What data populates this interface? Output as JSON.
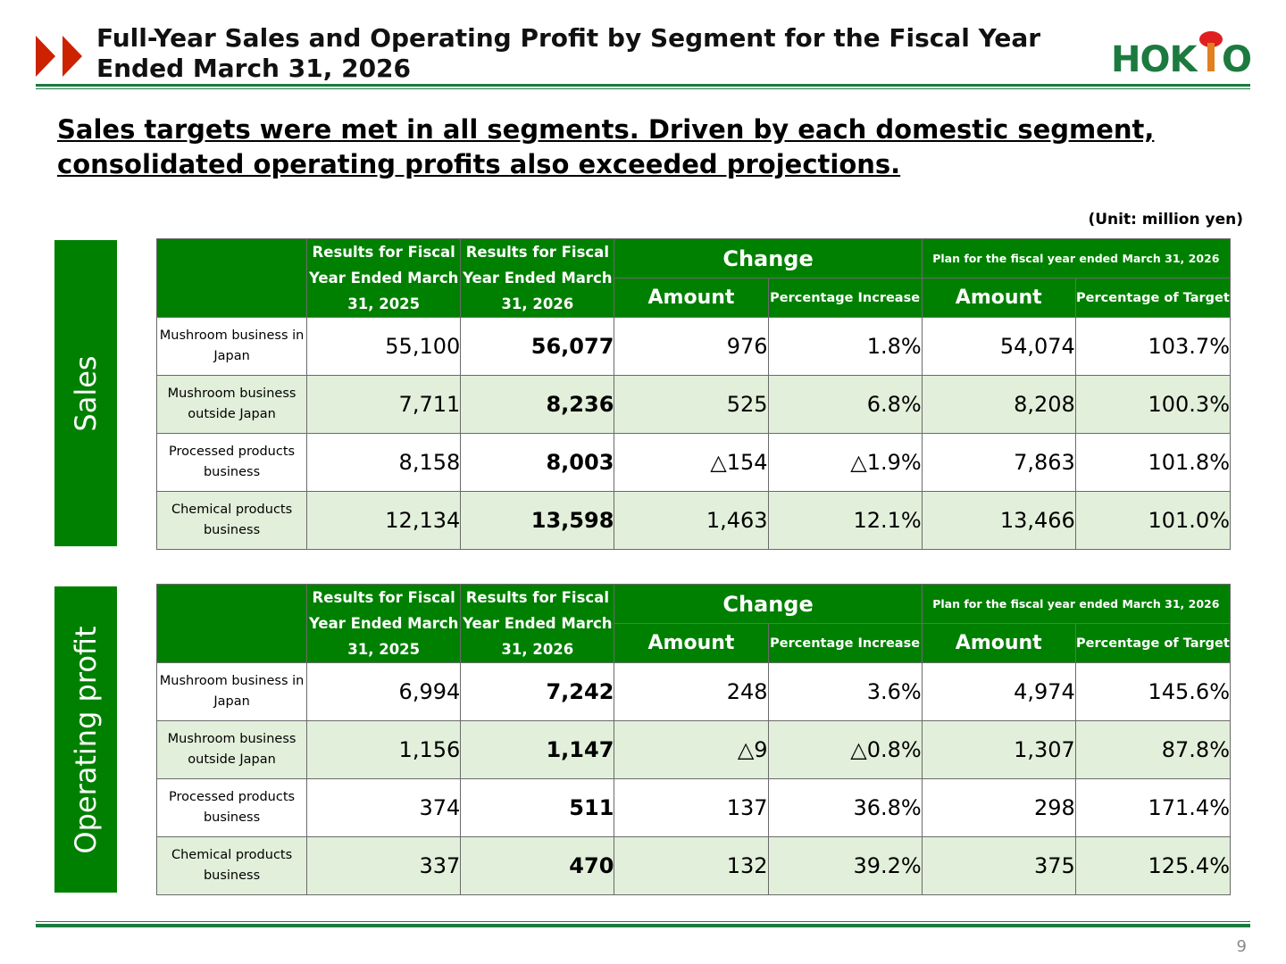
{
  "header": {
    "title": "Full-Year Sales and Operating Profit by Segment for the Fiscal Year Ended March 31, 2026",
    "logo_text": "HOKTO"
  },
  "headline": "Sales targets were met in all segments. Driven by each domestic segment, consolidated operating profits also exceeded projections.",
  "unit": "(Unit: million yen)",
  "columns": {
    "results_prev": "Results for Fiscal Year Ended March 31, 2025",
    "results_curr": "Results for Fiscal Year Ended March 31, 2026",
    "change": "Change",
    "plan": "Plan for the fiscal year ended March 31, 2026",
    "amount": "Amount",
    "pct_increase": "Percentage Increase",
    "pct_target": "Percentage of Target"
  },
  "sales": {
    "label": "Sales",
    "rows": [
      {
        "name": "Mushroom business in Japan",
        "prev": "55,100",
        "curr": "56,077",
        "chg_amt": "976",
        "chg_pct": "1.8%",
        "plan_amt": "54,074",
        "plan_pct": "103.7%"
      },
      {
        "name": "Mushroom business outside Japan",
        "prev": "7,711",
        "curr": "8,236",
        "chg_amt": "525",
        "chg_pct": "6.8%",
        "plan_amt": "8,208",
        "plan_pct": "100.3%"
      },
      {
        "name": "Processed products business",
        "prev": "8,158",
        "curr": "8,003",
        "chg_amt": "△154",
        "chg_pct": "△1.9%",
        "plan_amt": "7,863",
        "plan_pct": "101.8%"
      },
      {
        "name": "Chemical products business",
        "prev": "12,134",
        "curr": "13,598",
        "chg_amt": "1,463",
        "chg_pct": "12.1%",
        "plan_amt": "13,466",
        "plan_pct": "101.0%"
      }
    ]
  },
  "profit": {
    "label": "Operating profit",
    "rows": [
      {
        "name": "Mushroom business in Japan",
        "prev": "6,994",
        "curr": "7,242",
        "chg_amt": "248",
        "chg_pct": "3.6%",
        "plan_amt": "4,974",
        "plan_pct": "145.6%"
      },
      {
        "name": "Mushroom business outside Japan",
        "prev": "1,156",
        "curr": "1,147",
        "chg_amt": "△9",
        "chg_pct": "△0.8%",
        "plan_amt": "1,307",
        "plan_pct": "87.8%"
      },
      {
        "name": "Processed products business",
        "prev": "374",
        "curr": "511",
        "chg_amt": "137",
        "chg_pct": "36.8%",
        "plan_amt": "298",
        "plan_pct": "171.4%"
      },
      {
        "name": "Chemical products business",
        "prev": "337",
        "curr": "470",
        "chg_amt": "132",
        "chg_pct": "39.2%",
        "plan_amt": "375",
        "plan_pct": "125.4%"
      }
    ]
  },
  "colors": {
    "brand_green": "#008000",
    "row_alt": "#e2efda",
    "accent_red": "#cc2200",
    "logo_green": "#1c7a3f"
  },
  "page_number": "9"
}
